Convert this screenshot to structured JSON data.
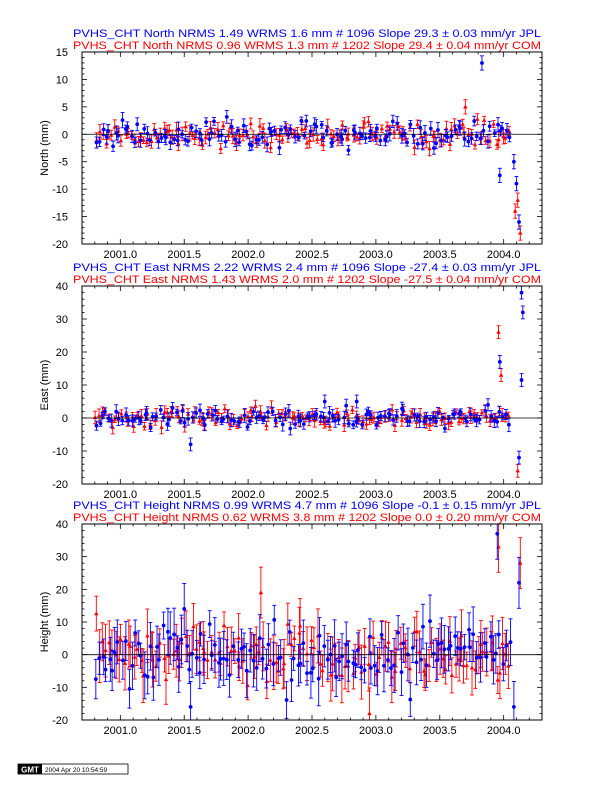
{
  "colors": {
    "jpl": "#0000ff",
    "com": "#ff0000",
    "axis": "#000000",
    "background": "#ffffff"
  },
  "footer": {
    "logo_text": "GMT",
    "timestamp": "2004 Apr 20 10:54:59"
  },
  "chart_data": [
    {
      "type": "scatter",
      "error_bars": true,
      "grid": false,
      "zero_line": true,
      "title_lines": [
        {
          "text": "PVHS_CHT North NRMS 1.49 WRMS  1.6 mm # 1096 Slope   29.3 ±  0.03 mm/yr JPL",
          "color": "#0000ff"
        },
        {
          "text": "PVHS_CHT North NRMS 0.96 WRMS  1.3 mm # 1202 Slope   29.4 ±  0.04 mm/yr COM",
          "color": "#ff0000"
        }
      ],
      "xlabel": "",
      "ylabel": "North (mm)",
      "xlim": [
        2000.7,
        2004.3
      ],
      "ylim": [
        -20,
        15
      ],
      "xticks": [
        "2001.0",
        "2001.5",
        "2002.0",
        "2002.5",
        "2003.0",
        "2003.5",
        "2004.0"
      ],
      "yticks": [
        "-20",
        "-15",
        "-10",
        "-5",
        "0",
        "5",
        "10",
        "15"
      ],
      "x_range": [
        2000.8,
        2004.14
      ],
      "typical_scatter_mm": 1.2,
      "typical_error_bar_mm": 1.0,
      "series": [
        {
          "name": "JPL",
          "color": "#0000ff",
          "marker": "circle"
        },
        {
          "name": "COM",
          "color": "#ff0000",
          "marker": "triangle"
        }
      ],
      "notable_points": [
        {
          "x": 2003.83,
          "y": 13,
          "series": "JPL"
        },
        {
          "x": 2003.97,
          "y": -7.5,
          "series": "JPL"
        },
        {
          "x": 2004.08,
          "y": -5,
          "series": "JPL"
        },
        {
          "x": 2004.1,
          "y": -9,
          "series": "JPL"
        },
        {
          "x": 2004.11,
          "y": -12,
          "series": "COM"
        },
        {
          "x": 2004.12,
          "y": -16,
          "series": "JPL"
        },
        {
          "x": 2004.13,
          "y": -18,
          "series": "COM"
        },
        {
          "x": 2004.09,
          "y": -14,
          "series": "COM"
        },
        {
          "x": 2003.7,
          "y": 5,
          "series": "COM"
        }
      ]
    },
    {
      "type": "scatter",
      "error_bars": true,
      "grid": false,
      "zero_line": true,
      "title_lines": [
        {
          "text": "PVHS_CHT East NRMS 2.22 WRMS  2.4 mm # 1096 Slope  -27.4 ±  0.03 mm/yr JPL",
          "color": "#0000ff"
        },
        {
          "text": "PVHS_CHT East NRMS 1.43 WRMS  2.0 mm # 1202 Slope  -27.5 ±  0.04 mm/yr COM",
          "color": "#ff0000"
        }
      ],
      "xlabel": "",
      "ylabel": "East (mm)",
      "xlim": [
        2000.7,
        2004.3
      ],
      "ylim": [
        -20,
        40
      ],
      "xticks": [
        "2001.0",
        "2001.5",
        "2002.0",
        "2002.5",
        "2003.0",
        "2003.5",
        "2004.0"
      ],
      "yticks": [
        "-20",
        "-10",
        "0",
        "10",
        "20",
        "30",
        "40"
      ],
      "x_range": [
        2000.8,
        2004.14
      ],
      "typical_scatter_mm": 1.5,
      "typical_error_bar_mm": 1.5,
      "series": [
        {
          "name": "JPL",
          "color": "#0000ff",
          "marker": "circle"
        },
        {
          "name": "COM",
          "color": "#ff0000",
          "marker": "triangle"
        }
      ],
      "notable_points": [
        {
          "x": 2003.96,
          "y": 26,
          "series": "COM"
        },
        {
          "x": 2003.97,
          "y": 17,
          "series": "JPL"
        },
        {
          "x": 2003.98,
          "y": 13,
          "series": "COM"
        },
        {
          "x": 2004.14,
          "y": 38,
          "series": "JPL"
        },
        {
          "x": 2004.15,
          "y": 32,
          "series": "JPL"
        },
        {
          "x": 2004.14,
          "y": 11.5,
          "series": "JPL"
        },
        {
          "x": 2004.12,
          "y": -12,
          "series": "JPL"
        },
        {
          "x": 2004.11,
          "y": -16,
          "series": "COM"
        },
        {
          "x": 2001.55,
          "y": -8,
          "series": "JPL"
        },
        {
          "x": 2002.6,
          "y": 5,
          "series": "JPL"
        },
        {
          "x": 2002.85,
          "y": 5,
          "series": "JPL"
        }
      ]
    },
    {
      "type": "scatter",
      "error_bars": true,
      "grid": false,
      "zero_line": true,
      "title_lines": [
        {
          "text": "PVHS_CHT Height NRMS 0.99 WRMS  4.7 mm # 1096 Slope   -0.1 ±  0.15 mm/yr JPL",
          "color": "#0000ff"
        },
        {
          "text": "PVHS_CHT Height NRMS 0.62 WRMS  3.8 mm # 1202 Slope    0.0 ±  0.20 mm/yr COM",
          "color": "#ff0000"
        }
      ],
      "xlabel": "",
      "ylabel": "Height (mm)",
      "xlim": [
        2000.7,
        2004.3
      ],
      "ylim": [
        -20,
        40
      ],
      "xticks": [
        "2001.0",
        "2001.5",
        "2002.0",
        "2002.5",
        "2003.0",
        "2003.5",
        "2004.0"
      ],
      "yticks": [
        "-20",
        "-10",
        "0",
        "10",
        "20",
        "30",
        "40"
      ],
      "x_range": [
        2000.8,
        2004.14
      ],
      "typical_scatter_mm": 5,
      "typical_error_bar_mm": 6,
      "series": [
        {
          "name": "JPL",
          "color": "#0000ff",
          "marker": "circle"
        },
        {
          "name": "COM",
          "color": "#ff0000",
          "marker": "triangle"
        }
      ],
      "notable_points": [
        {
          "x": 2003.95,
          "y": 37,
          "series": "JPL"
        },
        {
          "x": 2003.96,
          "y": 33,
          "series": "COM"
        },
        {
          "x": 2004.12,
          "y": 22,
          "series": "JPL"
        },
        {
          "x": 2004.13,
          "y": 28,
          "series": "COM"
        },
        {
          "x": 2004.08,
          "y": -16,
          "series": "JPL"
        },
        {
          "x": 2001.5,
          "y": 14,
          "series": "JPL"
        },
        {
          "x": 2002.1,
          "y": 19,
          "series": "COM"
        },
        {
          "x": 2001.55,
          "y": -16,
          "series": "JPL"
        },
        {
          "x": 2002.95,
          "y": -18,
          "series": "COM"
        }
      ]
    }
  ]
}
